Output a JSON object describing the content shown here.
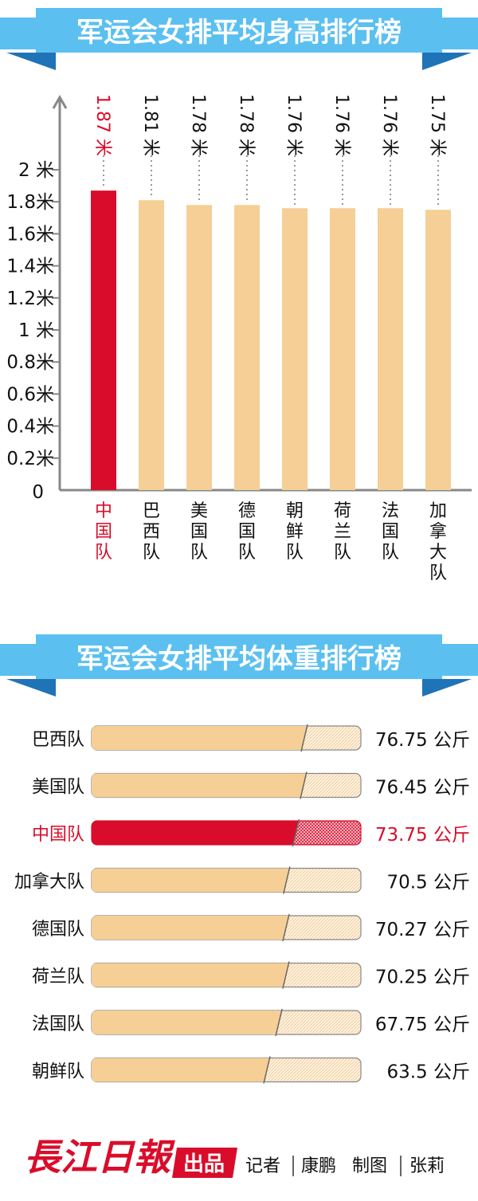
{
  "colors": {
    "banner": "#5bc0f0",
    "banner_dark": "#1f73b7",
    "highlight": "#d90d2b",
    "bar": "#f6cf96",
    "bar_stroke": "#888888",
    "axis": "#888888",
    "text": "#111111",
    "logo": "#d90d2b"
  },
  "chart_data": [
    {
      "type": "bar",
      "title": "军运会女排平均身高排行榜",
      "categories": [
        "中国队",
        "巴西队",
        "美国队",
        "德国队",
        "朝鲜队",
        "荷兰队",
        "法国队",
        "加拿大队"
      ],
      "values": [
        1.87,
        1.81,
        1.78,
        1.78,
        1.76,
        1.76,
        1.76,
        1.75
      ],
      "value_labels": [
        "1.87 米",
        "1.81 米",
        "1.78 米",
        "1.78 米",
        "1.76 米",
        "1.76 米",
        "1.76 米",
        "1.75 米"
      ],
      "highlight": "中国队",
      "ylim": [
        0,
        2
      ],
      "yticks": [
        0,
        0.2,
        0.4,
        0.6,
        0.8,
        1,
        1.2,
        1.4,
        1.6,
        1.8,
        2
      ],
      "ytick_labels": [
        "0",
        "0.2米",
        "0.4米",
        "0.6米",
        "0.8米",
        "1 米",
        "1.2米",
        "1.4米",
        "1.6米",
        "1.8米",
        "2 米"
      ]
    },
    {
      "type": "bar",
      "orientation": "horizontal",
      "title": "军运会女排平均体重排行榜",
      "categories": [
        "巴西队",
        "美国队",
        "中国队",
        "加拿大队",
        "德国队",
        "荷兰队",
        "法国队",
        "朝鲜队"
      ],
      "values": [
        76.75,
        76.45,
        73.75,
        70.5,
        70.27,
        70.25,
        67.75,
        63.5
      ],
      "value_labels": [
        "76.75 公斤",
        "76.45 公斤",
        "73.75 公斤",
        "70.5 公斤",
        "70.27 公斤",
        "70.25 公斤",
        "67.75 公斤",
        "63.5 公斤"
      ],
      "highlight": "中国队"
    }
  ],
  "footer": {
    "logo_text": "長江日報",
    "produced_label": "出品",
    "credit_reporter_role": "记者",
    "credit_reporter_name": "康鹏",
    "credit_design_role": "制图",
    "credit_design_name": "张莉"
  }
}
